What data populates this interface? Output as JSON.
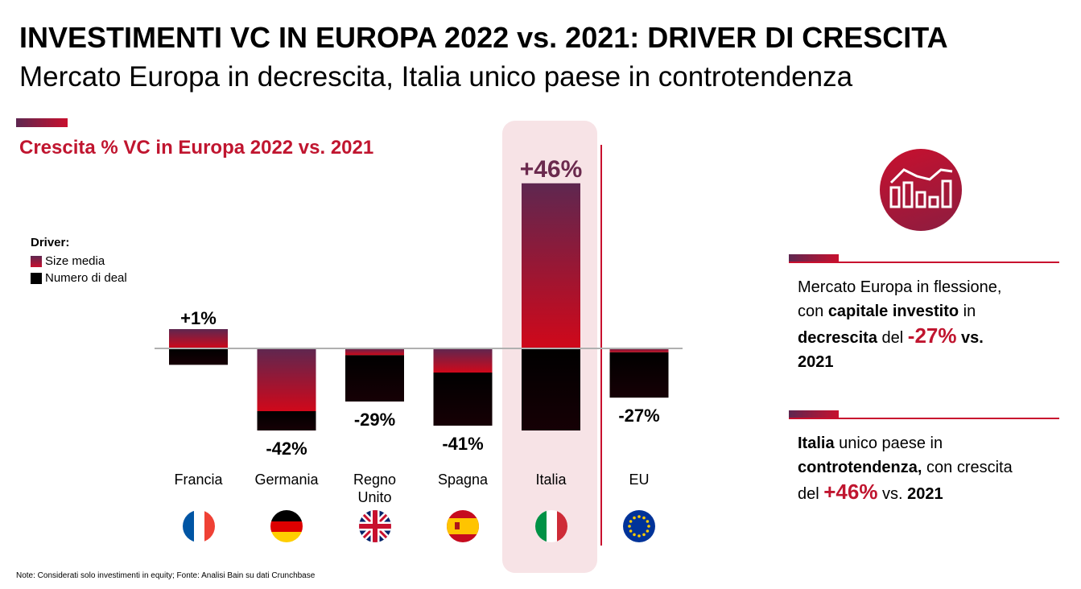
{
  "header": {
    "title": "INVESTIMENTI VC IN EUROPA 2022 vs. 2021: DRIVER DI CRESCITA",
    "subtitle": "Mercato Europa in decrescita, Italia unico paese in controtendenza"
  },
  "chart_data": {
    "type": "bar",
    "title": "Crescita % VC in Europa 2022 vs. 2021",
    "legend": {
      "title": "Driver:",
      "entries": [
        "Size media",
        "Numero di deal"
      ],
      "placement": "left"
    },
    "categories": [
      "Francia",
      "Germania",
      "Regno Unito",
      "Spagna",
      "Italia",
      "EU"
    ],
    "category_lines": [
      [
        "Francia"
      ],
      [
        "Germania"
      ],
      [
        "Regno",
        "Unito"
      ],
      [
        "Spagna"
      ],
      [
        "Italia"
      ],
      [
        "EU"
      ]
    ],
    "labels": [
      "+1%",
      "-42%",
      "-29%",
      "-41%",
      "+46%",
      "-27%"
    ],
    "values": [
      1,
      -42,
      -29,
      -41,
      46,
      -27
    ],
    "series": [
      {
        "name": "Size media",
        "color": "#c8102e",
        "segments": [
          [
            0,
            20
          ],
          [
            -65,
            0
          ],
          [
            -7,
            0
          ],
          [
            -25,
            0
          ],
          [
            0,
            171
          ],
          [
            -4,
            0
          ]
        ]
      },
      {
        "name": "Numero di deal",
        "color": "#000000",
        "segments": [
          [
            -17,
            0
          ],
          [
            -85,
            -65
          ],
          [
            -55,
            -7
          ],
          [
            -80,
            -25
          ],
          [
            -85,
            0
          ],
          [
            -51,
            -4
          ]
        ]
      }
    ],
    "highlight_category": "Italia",
    "flag_icons": [
      "flag-fr-icon",
      "flag-de-icon",
      "flag-uk-icon",
      "flag-es-icon",
      "flag-it-icon",
      "flag-eu-icon"
    ]
  },
  "side": {
    "box1": {
      "line1": "Mercato Europa in flessione,",
      "line2_a": "con ",
      "line2_b": "capitale investito",
      "line2_c": " in",
      "line3_a": "decrescita",
      "line3_b": " del ",
      "line3_c": "-27%",
      "line3_d": " vs.",
      "line4": "2021"
    },
    "box2": {
      "line1_a": "Italia",
      "line1_b": " unico paese in",
      "line2_a": "controtendenza,",
      "line2_b": " con crescita",
      "line3_a": "del ",
      "line3_b": "+46%",
      "line3_c": " vs. ",
      "line3_d": "2021"
    },
    "icon": "bar-chart-trend-icon"
  },
  "footer": {
    "note": "Note: Considerati solo investimenti in equity; Fonte: Analisi Bain su dati Crunchbase"
  }
}
